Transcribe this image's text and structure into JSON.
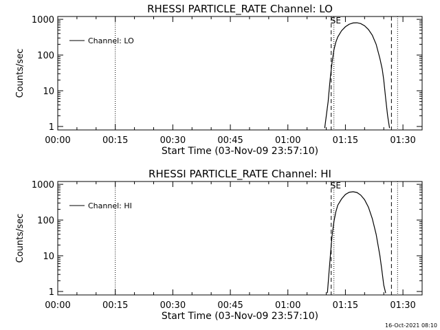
{
  "footer_timestamp": "16-Oct-2021 08:10",
  "chart_data": [
    {
      "type": "line",
      "title": "RHESSI PARTICLE_RATE Channel: LO",
      "xlabel": "Start Time (03-Nov-09 23:57:10)",
      "ylabel": "Counts/sec",
      "yscale": "log",
      "ylim": [
        0.8,
        1200
      ],
      "xlim_minutes": [
        0,
        95
      ],
      "x_ticks": [
        "00:00",
        "00:15",
        "00:30",
        "00:45",
        "01:00",
        "01:15",
        "01:30"
      ],
      "y_ticks": [
        "1",
        "10",
        "100",
        "1000"
      ],
      "legend": [
        "Channel: LO"
      ],
      "legend_position": "top-left",
      "markers": [
        {
          "minute": 15.0,
          "style": "dotted"
        },
        {
          "minute": 71.3,
          "style": "dashed"
        },
        {
          "minute": 72.0,
          "style": "dotted"
        },
        {
          "minute": 87.0,
          "style": "dashed"
        },
        {
          "minute": 88.6,
          "style": "dotted"
        }
      ],
      "marker_label": "SE",
      "series": [
        {
          "name": "Channel: LO",
          "x": [
            69.6,
            70.5,
            71.0,
            71.5,
            72.0,
            72.5,
            73.0,
            74.0,
            75.0,
            76.0,
            77.0,
            78.0,
            79.0,
            80.0,
            81.0,
            82.0,
            83.0,
            84.0,
            84.6,
            85.0,
            85.5,
            86.0,
            86.5
          ],
          "y": [
            0.9,
            5,
            20,
            60,
            140,
            230,
            320,
            480,
            620,
            730,
            790,
            800,
            760,
            660,
            520,
            360,
            200,
            80,
            40,
            20,
            6,
            2,
            0.9
          ]
        }
      ]
    },
    {
      "type": "line",
      "title": "RHESSI PARTICLE_RATE Channel: HI",
      "xlabel": "Start Time (03-Nov-09 23:57:10)",
      "ylabel": "Counts/sec",
      "yscale": "log",
      "ylim": [
        0.8,
        1200
      ],
      "xlim_minutes": [
        0,
        95
      ],
      "x_ticks": [
        "00:00",
        "00:15",
        "00:30",
        "00:45",
        "01:00",
        "01:15",
        "01:30"
      ],
      "y_ticks": [
        "1",
        "10",
        "100",
        "1000"
      ],
      "legend": [
        "Channel: HI"
      ],
      "legend_position": "top-left",
      "markers": [
        {
          "minute": 15.0,
          "style": "dotted"
        },
        {
          "minute": 71.3,
          "style": "dashed"
        },
        {
          "minute": 72.0,
          "style": "dotted"
        },
        {
          "minute": 87.0,
          "style": "dashed"
        },
        {
          "minute": 88.6,
          "style": "dotted"
        }
      ],
      "marker_label": "SE",
      "series": [
        {
          "name": "Channel: HI",
          "x": [
            70.3,
            71.0,
            71.5,
            72.0,
            72.5,
            73.0,
            74.0,
            75.0,
            76.0,
            77.0,
            78.0,
            79.0,
            80.0,
            81.0,
            82.0,
            83.0,
            84.0,
            84.5,
            85.0,
            85.5
          ],
          "y": [
            0.9,
            8,
            35,
            90,
            170,
            260,
            390,
            520,
            600,
            620,
            590,
            500,
            370,
            230,
            110,
            40,
            10,
            4,
            1.5,
            0.9
          ]
        }
      ]
    }
  ]
}
